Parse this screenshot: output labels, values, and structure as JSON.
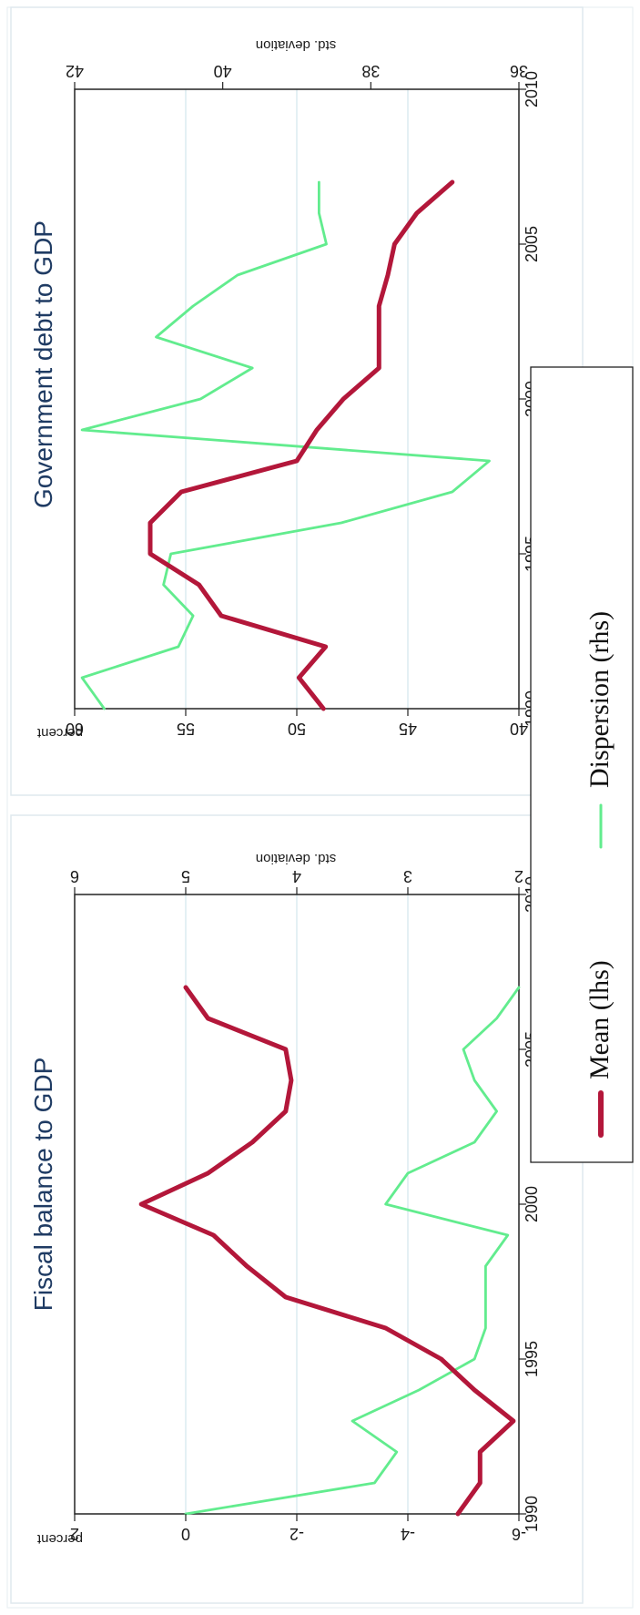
{
  "colors": {
    "mean": "#b3173a",
    "dispersion": "#62ec8e",
    "grid": "#d3e6ec",
    "frame": "#dfe9ee"
  },
  "legend": {
    "mean_label": "Mean (lhs)",
    "dispersion_label": "Dispersion (rhs)"
  },
  "chart_data": [
    {
      "type": "line",
      "title": "Fiscal balance to GDP",
      "ylabel_left": "percent",
      "ylabel_right": "std. deviation",
      "xlim": [
        1990,
        2010
      ],
      "xticks": [
        1990,
        1995,
        2000,
        2005,
        2010
      ],
      "ylim_left": [
        -6,
        2
      ],
      "yticks_left": [
        2,
        0,
        -2,
        -4,
        -6
      ],
      "ylim_right": [
        2,
        6
      ],
      "yticks_right": [
        6,
        5,
        4,
        3,
        2
      ],
      "x": [
        1990,
        1991,
        1992,
        1993,
        1994,
        1995,
        1996,
        1997,
        1998,
        1999,
        2000,
        2001,
        2002,
        2003,
        2004,
        2005,
        2006,
        2007
      ],
      "series": [
        {
          "name": "Mean (lhs)",
          "axis": "left",
          "values": [
            -4.9,
            -5.3,
            -5.3,
            -5.9,
            -5.2,
            -4.6,
            -3.6,
            -1.8,
            -1.1,
            -0.5,
            0.8,
            -0.4,
            -1.2,
            -1.8,
            -1.9,
            -1.8,
            -0.4,
            0.0
          ]
        },
        {
          "name": "Dispersion (rhs)",
          "axis": "right",
          "values": [
            5.0,
            3.3,
            3.1,
            3.5,
            2.9,
            2.4,
            2.3,
            2.3,
            2.3,
            2.1,
            3.2,
            3.0,
            2.4,
            2.2,
            2.4,
            2.5,
            2.2,
            2.0
          ]
        }
      ]
    },
    {
      "type": "line",
      "title": "Government debt to GDP",
      "ylabel_left": "percent",
      "ylabel_right": "std. deviation",
      "xlim": [
        1990,
        2010
      ],
      "xticks": [
        1990,
        1995,
        2000,
        2005,
        2010
      ],
      "ylim_left": [
        40,
        60
      ],
      "yticks_left": [
        60,
        55,
        50,
        45,
        40
      ],
      "ylim_right": [
        36,
        42
      ],
      "yticks_right": [
        42,
        40,
        38,
        36
      ],
      "x": [
        1990,
        1991,
        1992,
        1993,
        1994,
        1995,
        1996,
        1997,
        1998,
        1999,
        2000,
        2001,
        2002,
        2003,
        2004,
        2005,
        2006,
        2007
      ],
      "series": [
        {
          "name": "Mean (lhs)",
          "axis": "left",
          "values": [
            48.8,
            49.9,
            48.7,
            53.4,
            54.4,
            56.6,
            56.6,
            55.2,
            50.0,
            49.1,
            47.9,
            46.3,
            46.3,
            46.3,
            45.9,
            45.6,
            44.6,
            43.0
          ]
        },
        {
          "name": "Dispersion (rhs)",
          "axis": "right",
          "values": [
            41.6,
            41.9,
            40.6,
            40.4,
            40.8,
            40.7,
            38.4,
            36.9,
            36.4,
            41.9,
            40.3,
            39.6,
            40.9,
            40.4,
            39.8,
            38.6,
            38.7,
            38.7
          ]
        }
      ]
    }
  ]
}
